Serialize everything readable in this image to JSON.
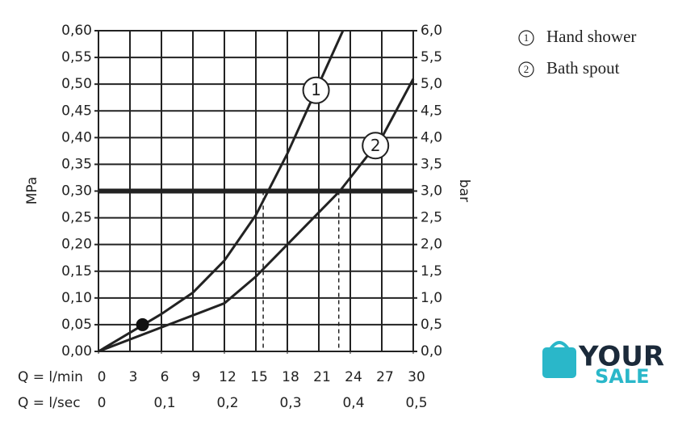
{
  "chart_data": {
    "type": "line",
    "y_label": "MPa",
    "y2_label": "bar",
    "x_label": "Q = l/min",
    "x2_label": "Q = l/sec",
    "xlim": [
      0,
      30
    ],
    "xticks": [
      0,
      3,
      6,
      9,
      12,
      15,
      18,
      21,
      24,
      27,
      30
    ],
    "x2lim": [
      0,
      0.5
    ],
    "x2ticks": [
      0,
      {
        "value": 0.1,
        "label": "0,1"
      },
      {
        "value": 0.2,
        "label": "0,2"
      },
      {
        "value": 0.3,
        "label": "0,3"
      },
      {
        "value": 0.4,
        "label": "0,4"
      },
      {
        "value": 0.5,
        "label": "0,5"
      }
    ],
    "ylim": [
      0,
      0.6
    ],
    "yticks": [
      {
        "value": 0,
        "label": "0,00"
      },
      {
        "value": 0.05,
        "label": "0,05"
      },
      {
        "value": 0.1,
        "label": "0,10"
      },
      {
        "value": 0.15,
        "label": "0,15"
      },
      {
        "value": 0.2,
        "label": "0,20"
      },
      {
        "value": 0.25,
        "label": "0,25"
      },
      {
        "value": 0.3,
        "label": "0,30"
      },
      {
        "value": 0.35,
        "label": "0,35"
      },
      {
        "value": 0.4,
        "label": "0,40"
      },
      {
        "value": 0.45,
        "label": "0,45"
      },
      {
        "value": 0.5,
        "label": "0,50"
      },
      {
        "value": 0.55,
        "label": "0,55"
      },
      {
        "value": 0.6,
        "label": "0,60"
      }
    ],
    "y2lim": [
      0,
      6
    ],
    "y2ticks": [
      {
        "value": 0,
        "label": "0,0"
      },
      {
        "value": 0.5,
        "label": "0,5"
      },
      {
        "value": 1,
        "label": "1,0"
      },
      {
        "value": 1.5,
        "label": "1,5"
      },
      {
        "value": 2,
        "label": "2,0"
      },
      {
        "value": 2.5,
        "label": "2,5"
      },
      {
        "value": 3,
        "label": "3,0"
      },
      {
        "value": 3.5,
        "label": "3,5"
      },
      {
        "value": 4,
        "label": "4,0"
      },
      {
        "value": 4.5,
        "label": "4,5"
      },
      {
        "value": 5,
        "label": "5,0"
      },
      {
        "value": 5.5,
        "label": "5,5"
      },
      {
        "value": 6,
        "label": "6,0"
      }
    ],
    "grid": true,
    "color": "#222222",
    "series": [
      {
        "name": "Hand shower",
        "label": "1",
        "color": "#222222",
        "x": [
          0,
          3,
          6,
          9,
          12,
          15,
          18,
          21,
          23.3
        ],
        "values": [
          0,
          0.035,
          0.07,
          0.11,
          0.17,
          0.255,
          0.37,
          0.5,
          0.6
        ]
      },
      {
        "name": "Bath spout",
        "label": "2",
        "color": "#222222",
        "x": [
          0,
          6,
          12,
          15,
          18,
          21,
          23,
          27,
          30
        ],
        "values": [
          0,
          0.045,
          0.09,
          0.14,
          0.2,
          0.26,
          0.3,
          0.4,
          0.51
        ]
      }
    ],
    "reference_line": 0.3,
    "drop_lines": [
      15.7,
      22.9
    ],
    "point": {
      "x": 4.2,
      "y": 0.05
    },
    "watermark": {
      "line1": "YOUR",
      "line2": "SALE"
    }
  }
}
